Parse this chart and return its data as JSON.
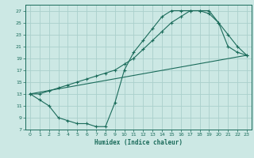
{
  "xlabel": "Humidex (Indice chaleur)",
  "bg_color": "#cce8e4",
  "grid_color": "#aad0cc",
  "line_color": "#1a6b5a",
  "xlim": [
    -0.5,
    23.5
  ],
  "ylim": [
    7,
    28
  ],
  "xticks": [
    0,
    1,
    2,
    3,
    4,
    5,
    6,
    7,
    8,
    9,
    10,
    11,
    12,
    13,
    14,
    15,
    16,
    17,
    18,
    19,
    20,
    21,
    22,
    23
  ],
  "yticks": [
    7,
    9,
    11,
    13,
    15,
    17,
    19,
    21,
    23,
    25,
    27
  ],
  "line1_x": [
    0,
    1,
    2,
    3,
    4,
    5,
    6,
    7,
    8,
    9,
    10,
    11,
    12,
    13,
    14,
    15,
    16,
    17,
    18,
    19,
    20,
    21,
    22,
    23
  ],
  "line1_y": [
    13,
    12,
    11,
    9,
    8.5,
    8,
    8,
    7.5,
    7.5,
    11.5,
    17,
    20,
    22,
    24,
    26,
    27,
    27,
    27,
    27,
    26.5,
    25,
    21,
    20,
    19.5
  ],
  "line2_x": [
    0,
    23
  ],
  "line2_y": [
    13,
    19.5
  ],
  "line3_x": [
    0,
    1,
    2,
    3,
    4,
    5,
    6,
    7,
    8,
    9,
    10,
    11,
    12,
    13,
    14,
    15,
    16,
    17,
    18,
    19,
    20,
    21,
    22,
    23
  ],
  "line3_y": [
    13,
    13,
    13.5,
    14,
    14.5,
    15,
    15.5,
    16,
    16.5,
    17,
    18,
    19,
    20.5,
    22,
    23.5,
    25,
    26,
    27,
    27,
    27,
    25,
    23,
    21,
    19.5
  ]
}
